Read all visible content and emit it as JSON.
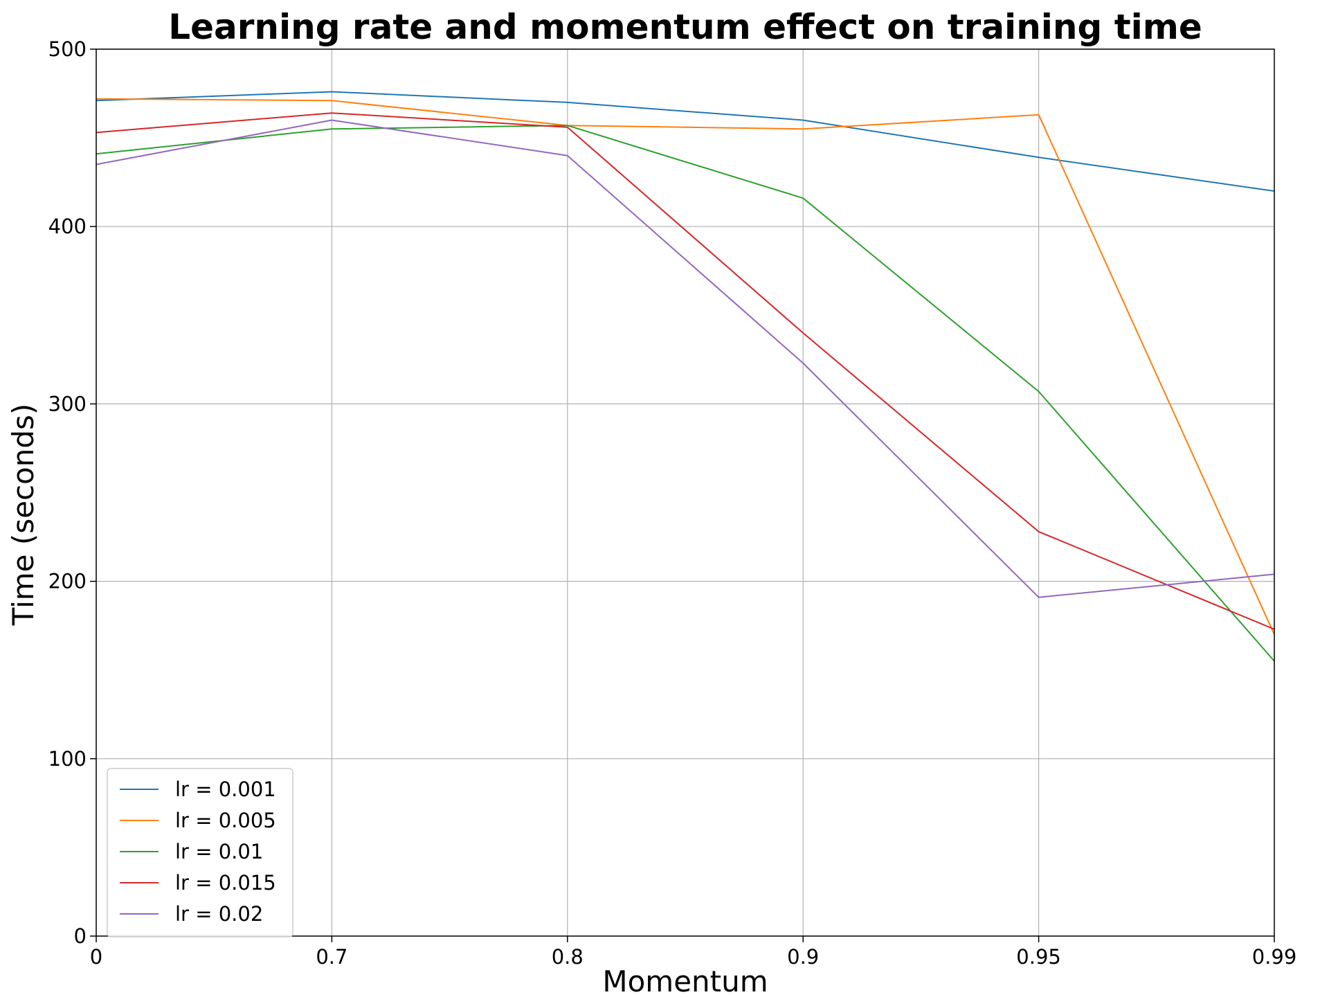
{
  "chart_data": {
    "type": "line",
    "title": "Learning rate and momentum effect on training time",
    "xlabel": "Momentum",
    "ylabel": "Time (seconds)",
    "categories": [
      "0",
      "0.7",
      "0.8",
      "0.9",
      "0.95",
      "0.99"
    ],
    "ylim": [
      0,
      500
    ],
    "yticks": [
      "0",
      "100",
      "200",
      "300",
      "400",
      "500"
    ],
    "grid": true,
    "legend_position": "bottom-left",
    "series": [
      {
        "name": "lr = 0.001",
        "color": "#1f77b4",
        "values": [
          471,
          476,
          470,
          460,
          439,
          420
        ]
      },
      {
        "name": "lr = 0.005",
        "color": "#ff7f0e",
        "values": [
          472,
          471,
          457,
          455,
          463,
          170
        ]
      },
      {
        "name": "lr = 0.01",
        "color": "#2ca02c",
        "values": [
          441,
          455,
          457,
          416,
          307,
          155
        ]
      },
      {
        "name": "lr = 0.015",
        "color": "#d62728",
        "values": [
          453,
          464,
          456,
          340,
          228,
          173
        ]
      },
      {
        "name": "lr = 0.02",
        "color": "#9467bd",
        "values": [
          435,
          460,
          440,
          323,
          191,
          204
        ]
      }
    ]
  }
}
